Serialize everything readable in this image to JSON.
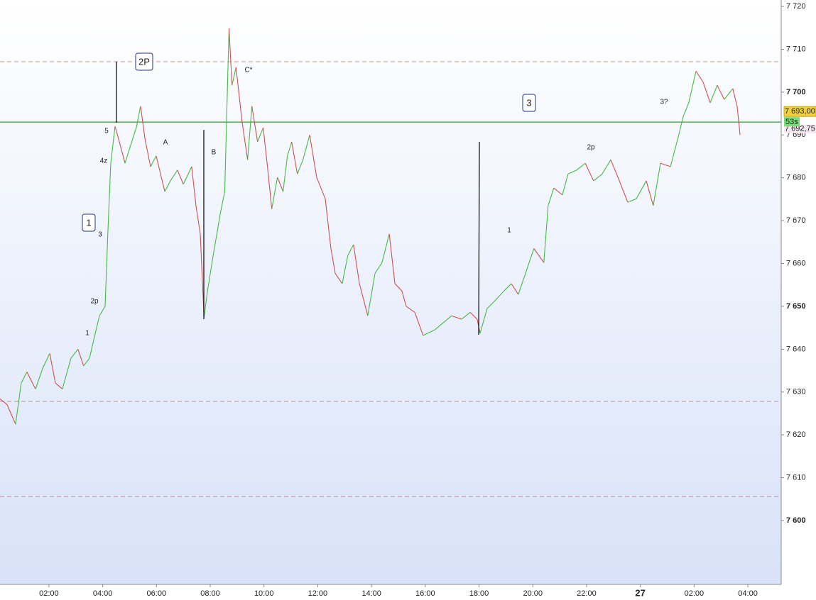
{
  "chart_data": {
    "type": "line",
    "xlim": [
      0.18,
      29.24
    ],
    "ylim": [
      7585.1,
      7721.5
    ],
    "xticks": [
      {
        "value": 2,
        "label": "02:00"
      },
      {
        "value": 4,
        "label": "04:00"
      },
      {
        "value": 6,
        "label": "06:00"
      },
      {
        "value": 8,
        "label": "08:00"
      },
      {
        "value": 10,
        "label": "10:00"
      },
      {
        "value": 12,
        "label": "12:00"
      },
      {
        "value": 14,
        "label": "14:00"
      },
      {
        "value": 16,
        "label": "16:00"
      },
      {
        "value": 18,
        "label": "18:00"
      },
      {
        "value": 20,
        "label": "20:00"
      },
      {
        "value": 22,
        "label": "22:00"
      },
      {
        "value": 24,
        "label": "27"
      },
      {
        "value": 26,
        "label": "02:00"
      },
      {
        "value": 28,
        "label": "04:00"
      }
    ],
    "yticks": [
      {
        "value": 7600,
        "label": "7 600"
      },
      {
        "value": 7610,
        "label": "7 610"
      },
      {
        "value": 7620,
        "label": "7 620"
      },
      {
        "value": 7630,
        "label": "7 630"
      },
      {
        "value": 7640,
        "label": "7 640"
      },
      {
        "value": 7650,
        "label": "7 650"
      },
      {
        "value": 7660,
        "label": "7 660"
      },
      {
        "value": 7670,
        "label": "7 670"
      },
      {
        "value": 7680,
        "label": "7 680"
      },
      {
        "value": 7690,
        "label": "7 690"
      },
      {
        "value": 7700,
        "label": "7 700"
      },
      {
        "value": 7710,
        "label": "7 710"
      },
      {
        "value": 7720,
        "label": "7 720"
      }
    ],
    "up_color": "#44bb44",
    "down_color": "#d05050",
    "x": [
      0.18,
      0.44,
      0.76,
      0.97,
      1.18,
      1.5,
      1.76,
      2.03,
      2.24,
      2.5,
      2.82,
      3.08,
      3.29,
      3.51,
      3.66,
      3.88,
      4.09,
      4.19,
      4.3,
      4.46,
      4.62,
      4.83,
      5.04,
      5.25,
      5.41,
      5.57,
      5.78,
      5.99,
      6.31,
      6.52,
      6.78,
      7.0,
      7.31,
      7.47,
      7.63,
      7.77,
      7.9,
      8.11,
      8.38,
      8.54,
      8.65,
      8.7,
      8.81,
      8.96,
      9.18,
      9.39,
      9.55,
      9.76,
      9.97,
      10.13,
      10.29,
      10.5,
      10.71,
      10.87,
      11.03,
      11.24,
      11.45,
      11.7,
      11.96,
      12.28,
      12.49,
      12.65,
      12.91,
      13.12,
      13.33,
      13.55,
      13.86,
      14.13,
      14.39,
      14.66,
      14.87,
      15.13,
      15.29,
      15.61,
      15.92,
      16.35,
      16.98,
      17.35,
      17.67,
      17.93,
      18.04,
      18.3,
      18.56,
      18.93,
      19.2,
      19.46,
      19.73,
      20.04,
      20.41,
      20.57,
      20.78,
      21.1,
      21.31,
      21.63,
      21.95,
      22.26,
      22.58,
      22.9,
      23.22,
      23.53,
      23.85,
      24.22,
      24.48,
      24.75,
      25.12,
      25.43,
      25.59,
      25.8,
      26.07,
      26.33,
      26.6,
      26.86,
      27.12,
      27.44,
      27.6,
      27.71
    ],
    "values": [
      7628.4,
      7627.1,
      7622.5,
      7632.1,
      7634.7,
      7630.7,
      7635.4,
      7639.0,
      7632.1,
      7630.7,
      7637.9,
      7640.0,
      7636.1,
      7637.9,
      7642.0,
      7647.8,
      7650.0,
      7666.9,
      7683.4,
      7692.0,
      7688.4,
      7683.4,
      7687.6,
      7691.7,
      7696.7,
      7689.2,
      7682.6,
      7685.1,
      7676.8,
      7679.3,
      7681.8,
      7678.5,
      7682.6,
      7673.5,
      7666.9,
      7647.5,
      7653.6,
      7661.9,
      7671.8,
      7676.8,
      7703.3,
      7714.9,
      7701.6,
      7705.8,
      7693.3,
      7684.2,
      7696.7,
      7688.4,
      7691.7,
      7682.6,
      7672.7,
      7680.1,
      7676.8,
      7685.1,
      7688.4,
      7680.9,
      7684.2,
      7690.0,
      7680.1,
      7675.1,
      7663.5,
      7657.7,
      7655.3,
      7661.9,
      7664.4,
      7655.3,
      7647.8,
      7657.7,
      7660.2,
      7666.9,
      7655.3,
      7653.6,
      7650.0,
      7648.6,
      7643.2,
      7644.5,
      7647.8,
      7647.0,
      7648.6,
      7647.0,
      7643.7,
      7649.5,
      7651.1,
      7653.6,
      7655.3,
      7652.8,
      7657.7,
      7663.5,
      7660.2,
      7673.5,
      7677.6,
      7676.0,
      7680.9,
      7681.8,
      7683.4,
      7679.3,
      7680.9,
      7684.2,
      7679.3,
      7674.3,
      7675.1,
      7679.3,
      7673.5,
      7683.4,
      7682.6,
      7690.0,
      7694.2,
      7697.5,
      7704.9,
      7702.4,
      7697.5,
      7701.6,
      7698.3,
      7700.8,
      7696.7,
      7690.0
    ],
    "dashed_levels": [
      7707.1,
      7627.8,
      7605.6
    ],
    "level_color": "#c09090",
    "current_price": {
      "value": 7693,
      "label": "7 693,00"
    },
    "price_line_color": "#55aa55",
    "countdown": "53s",
    "bid": {
      "value": 7692.75,
      "label": "7 692,75"
    },
    "annotations": [
      "1",
      "2P",
      "3",
      "5",
      "4z",
      "3",
      "2p",
      "1",
      "A",
      "B",
      "C*",
      "1",
      "2p",
      "3?"
    ]
  }
}
